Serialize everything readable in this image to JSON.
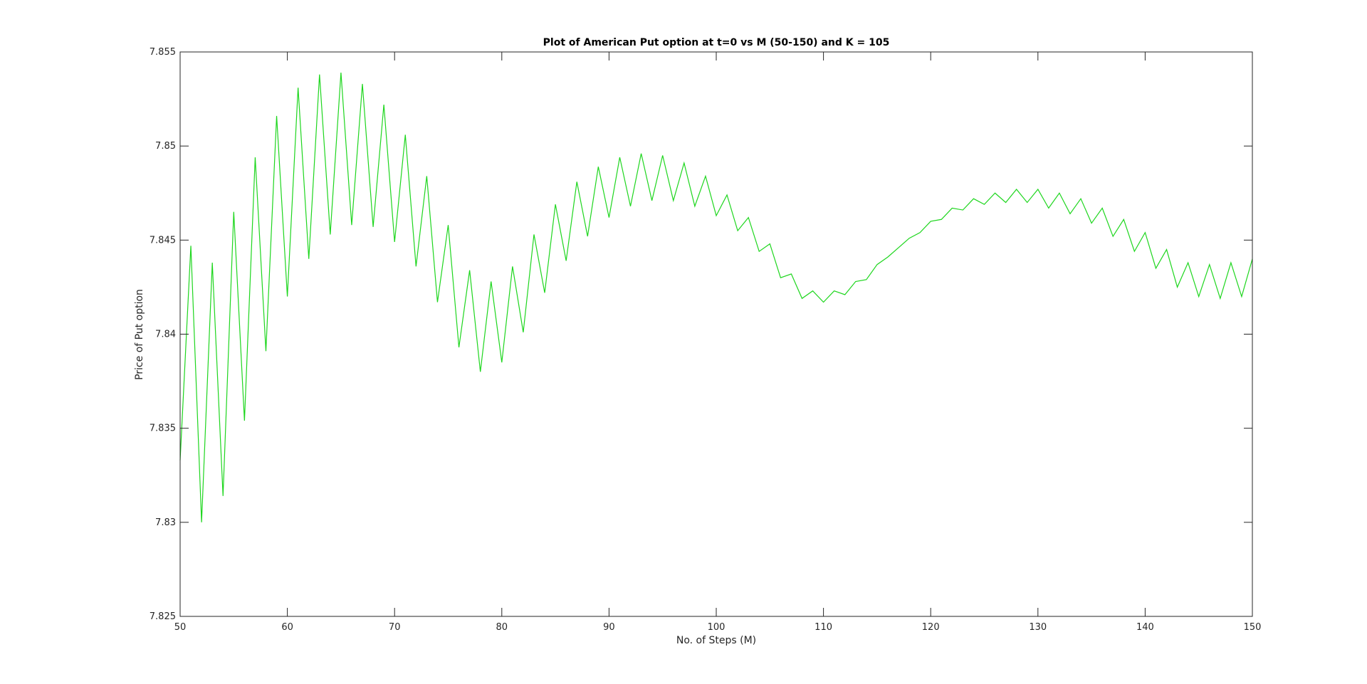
{
  "chart_data": {
    "type": "line",
    "title": "Plot of American Put option at t=0 vs M (50-150) and K = 105",
    "xlabel": "No. of Steps (M)",
    "ylabel": "Price of Put option",
    "xlim": [
      50,
      150
    ],
    "ylim": [
      7.825,
      7.855
    ],
    "xticks": [
      "50",
      "60",
      "70",
      "80",
      "90",
      "100",
      "110",
      "120",
      "130",
      "140",
      "150"
    ],
    "yticks": [
      "7.825",
      "7.83",
      "7.835",
      "7.84",
      "7.845",
      "7.85",
      "7.855"
    ],
    "xtick_values": [
      50,
      60,
      70,
      80,
      90,
      100,
      110,
      120,
      130,
      140,
      150
    ],
    "ytick_values": [
      7.825,
      7.83,
      7.835,
      7.84,
      7.845,
      7.85,
      7.855
    ],
    "grid": false,
    "series": [
      {
        "color": "#1ed61e",
        "x": [
          50,
          51,
          52,
          53,
          54,
          55,
          56,
          57,
          58,
          59,
          60,
          61,
          62,
          63,
          64,
          65,
          66,
          67,
          68,
          69,
          70,
          71,
          72,
          73,
          74,
          75,
          76,
          77,
          78,
          79,
          80,
          81,
          82,
          83,
          84,
          85,
          86,
          87,
          88,
          89,
          90,
          91,
          92,
          93,
          94,
          95,
          96,
          97,
          98,
          99,
          100,
          101,
          102,
          103,
          104,
          105,
          106,
          107,
          108,
          109,
          110,
          111,
          112,
          113,
          114,
          115,
          116,
          117,
          118,
          119,
          120,
          121,
          122,
          123,
          124,
          125,
          126,
          127,
          128,
          129,
          130,
          131,
          132,
          133,
          134,
          135,
          136,
          137,
          138,
          139,
          140,
          141,
          142,
          143,
          144,
          145,
          146,
          147,
          148,
          149,
          150
        ],
        "y": [
          7.8333,
          7.8447,
          7.83,
          7.8438,
          7.8314,
          7.8465,
          7.8354,
          7.8494,
          7.8391,
          7.8516,
          7.842,
          7.8531,
          7.844,
          7.8538,
          7.8453,
          7.8539,
          7.8458,
          7.8533,
          7.8457,
          7.8522,
          7.8449,
          7.8506,
          7.8436,
          7.8484,
          7.8417,
          7.8458,
          7.8393,
          7.8434,
          7.838,
          7.8428,
          7.8385,
          7.8436,
          7.8401,
          7.8453,
          7.8422,
          7.8469,
          7.8439,
          7.8481,
          7.8452,
          7.8489,
          7.8462,
          7.8494,
          7.8468,
          7.8496,
          7.8471,
          7.8495,
          7.8471,
          7.8491,
          7.8468,
          7.8484,
          7.8463,
          7.8474,
          7.8455,
          7.8462,
          7.8444,
          7.8448,
          7.843,
          7.8432,
          7.8419,
          7.8423,
          7.8417,
          7.8423,
          7.8421,
          7.8428,
          7.8429,
          7.8437,
          7.8441,
          7.8446,
          7.8451,
          7.8454,
          7.846,
          7.8461,
          7.8467,
          7.8466,
          7.8472,
          7.8469,
          7.8475,
          7.847,
          7.8477,
          7.847,
          7.8477,
          7.8467,
          7.8475,
          7.8464,
          7.8472,
          7.8459,
          7.8467,
          7.8452,
          7.8461,
          7.8444,
          7.8454,
          7.8435,
          7.8445,
          7.8425,
          7.8438,
          7.842,
          7.8437,
          7.8419,
          7.8438,
          7.842,
          7.844
        ]
      }
    ]
  }
}
